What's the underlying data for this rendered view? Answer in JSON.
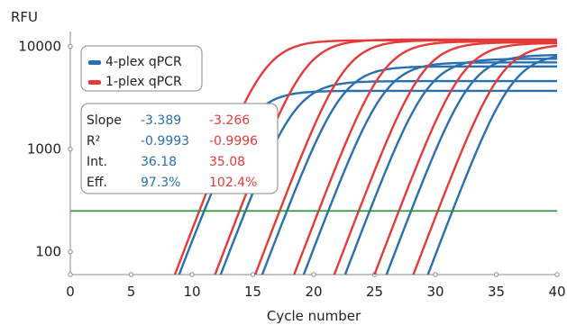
{
  "chart_data": {
    "type": "line",
    "title": "",
    "xlabel": "Cycle number",
    "ylabel": "RFU",
    "xlim": [
      0,
      40
    ],
    "ylim": [
      60,
      14000
    ],
    "yscale": "log",
    "x_ticks": [
      0,
      5,
      10,
      15,
      20,
      25,
      30,
      35,
      40
    ],
    "y_ticks": [
      100,
      1000,
      10000
    ],
    "grid": false,
    "legend_position": "top-left",
    "threshold": 250,
    "colors": {
      "4-plex": "#2a6fb0",
      "1-plex": "#e53a3a",
      "threshold": "#2e8b3e"
    },
    "series": [
      {
        "name": "4-plex qPCR",
        "color": "#2a6fb0",
        "curves": [
          {
            "ct": 11.0,
            "plateau": 3700
          },
          {
            "ct": 14.4,
            "plateau": 4600
          },
          {
            "ct": 17.8,
            "plateau": 6400
          },
          {
            "ct": 21.2,
            "plateau": 7000
          },
          {
            "ct": 24.6,
            "plateau": 7600
          },
          {
            "ct": 28.0,
            "plateau": 8300
          },
          {
            "ct": 31.4,
            "plateau": 8500
          }
        ]
      },
      {
        "name": "1-plex qPCR",
        "color": "#e53a3a",
        "curves": [
          {
            "ct": 10.6,
            "plateau": 11500
          },
          {
            "ct": 13.9,
            "plateau": 11700
          },
          {
            "ct": 17.2,
            "plateau": 11500
          },
          {
            "ct": 20.4,
            "plateau": 11200
          },
          {
            "ct": 23.7,
            "plateau": 11000
          },
          {
            "ct": 27.0,
            "plateau": 10800
          },
          {
            "ct": 30.2,
            "plateau": 10500
          }
        ]
      }
    ],
    "stats": {
      "rows": [
        "Slope",
        "R²",
        "Int.",
        "Eff."
      ],
      "four_plex": [
        "-3.389",
        "-0.9993",
        "36.18",
        "97.3%"
      ],
      "one_plex": [
        "-3.266",
        "-0.9996",
        "35.08",
        "102.4%"
      ]
    }
  }
}
